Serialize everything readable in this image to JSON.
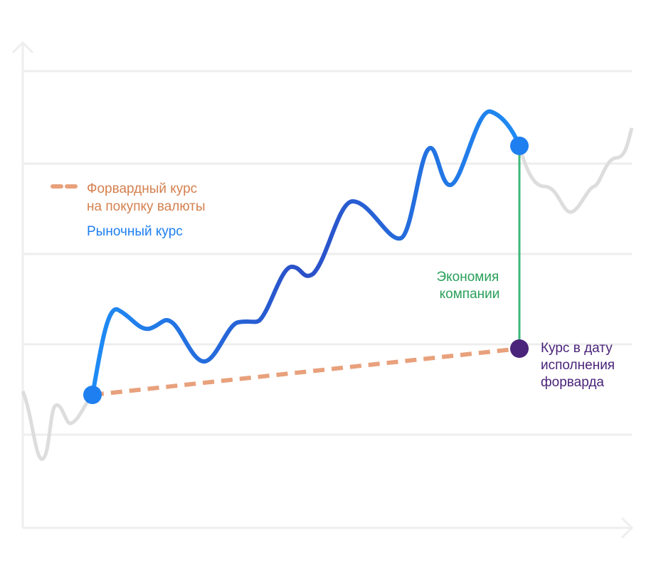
{
  "legend": {
    "forward": [
      "Форвардный курс",
      "на покупку валюты"
    ],
    "market": "Рыночный курс"
  },
  "annotations": {
    "savings": [
      "Экономия",
      "компании"
    ],
    "rate_at_date": [
      "Курс в дату",
      "исполнения",
      "форварда"
    ]
  }
}
